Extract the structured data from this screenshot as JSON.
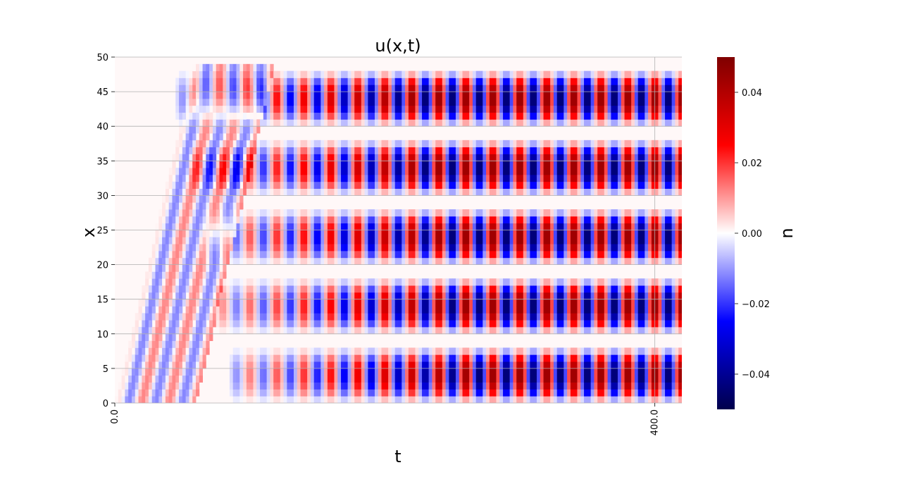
{
  "chart_data": {
    "type": "heatmap",
    "title": "u(x,t)",
    "xlabel": "t",
    "ylabel": "x",
    "colorbar_label": "u",
    "colormap": "seismic",
    "colormap_stops": [
      "#00004c",
      "#0000ff",
      "#ffffff",
      "#ff0000",
      "#7f0000"
    ],
    "color_range": [
      -0.05,
      0.05
    ],
    "xlim": [
      0,
      420
    ],
    "ylim": [
      0,
      50
    ],
    "x_ticks": [
      0,
      400
    ],
    "x_tick_labels": [
      "0.0",
      "400.0"
    ],
    "y_ticks": [
      0,
      5,
      10,
      15,
      20,
      25,
      30,
      35,
      40,
      45,
      50
    ],
    "y_tick_labels": [
      "0",
      "5",
      "10",
      "15",
      "20",
      "25",
      "30",
      "35",
      "40",
      "45",
      "50"
    ],
    "colorbar_ticks": [
      -0.04,
      -0.02,
      0.0,
      0.02,
      0.04
    ],
    "colorbar_tick_labels": [
      "−0.04",
      "−0.02",
      "0.00",
      "0.02",
      "0.04"
    ],
    "grid": "y",
    "bands": [
      {
        "x_range": [
          0,
          8
        ],
        "growth_start": 95
      },
      {
        "x_range": [
          10,
          18
        ],
        "growth_start": 85
      },
      {
        "x_range": [
          20,
          28
        ],
        "growth_start": 75
      },
      {
        "x_range": [
          30,
          38
        ],
        "growth_start": 65
      },
      {
        "x_range": [
          40,
          48
        ],
        "growth_start": 55
      }
    ],
    "oscillation_period_t": 20,
    "amplitude_max": 0.048
  }
}
